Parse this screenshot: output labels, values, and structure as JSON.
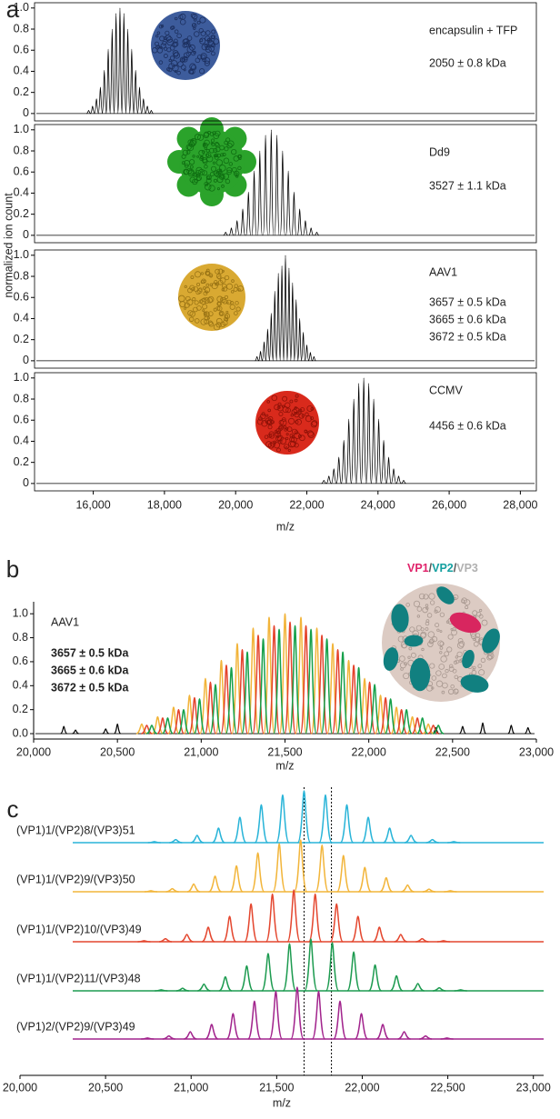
{
  "chart_data": [
    {
      "type": "spectrum",
      "panel_label": "a",
      "ylabel": "normalized ion count",
      "annotations": [
        "encapsulin + TFP",
        "2050 ± 0.8 kDa"
      ],
      "xlim": [
        14350,
        28450
      ],
      "ylim": [
        -0.07,
        1.05
      ],
      "yticks": [
        0,
        0.2,
        0.4,
        0.6,
        0.8,
        {
          "value": 1,
          "label": "1.0"
        }
      ],
      "color": "#000000",
      "x": [
        15870,
        15980,
        16090,
        16200,
        16310,
        16420,
        16530,
        16640,
        16750,
        16860,
        16970,
        17080,
        17190,
        17300,
        17410,
        17520,
        17630
      ],
      "values": [
        0.03,
        0.07,
        0.14,
        0.25,
        0.41,
        0.61,
        0.8,
        0.95,
        1.0,
        0.95,
        0.8,
        0.61,
        0.41,
        0.25,
        0.14,
        0.07,
        0.03
      ]
    },
    {
      "type": "spectrum",
      "annotations": [
        "Dd9",
        "3527 ± 1.1 kDa"
      ],
      "xlim": [
        14350,
        28450
      ],
      "ylim": [
        -0.07,
        1.05
      ],
      "yticks": [
        0,
        0.2,
        0.4,
        0.6,
        0.8,
        {
          "value": 1,
          "label": "1.0"
        }
      ],
      "color": "#000000",
      "x": [
        19720,
        19880,
        20040,
        20200,
        20360,
        20520,
        20680,
        20840,
        21000,
        21160,
        21320,
        21480,
        21640,
        21800,
        21960,
        22120,
        22280
      ],
      "values": [
        0.03,
        0.07,
        0.14,
        0.25,
        0.41,
        0.61,
        0.8,
        0.95,
        1.0,
        0.95,
        0.8,
        0.61,
        0.41,
        0.25,
        0.14,
        0.07,
        0.03
      ]
    },
    {
      "type": "spectrum",
      "annotations": [
        "AAV1",
        "3657 ± 0.5 kDa",
        "3665 ± 0.6 kDa",
        "3672 ± 0.5 kDa"
      ],
      "xlim": [
        14350,
        28450
      ],
      "ylim": [
        -0.07,
        1.05
      ],
      "yticks": [
        0,
        0.2,
        0.4,
        0.6,
        0.8,
        {
          "value": 1,
          "label": "1.0"
        }
      ],
      "color": "#000000",
      "x": [
        20600,
        20700,
        20800,
        20900,
        21000,
        21100,
        21200,
        21300,
        21400,
        21500,
        21600,
        21700,
        21800,
        21900,
        22000,
        22100,
        22200
      ],
      "values": [
        0.04,
        0.09,
        0.18,
        0.3,
        0.45,
        0.66,
        0.83,
        0.9,
        1.0,
        0.88,
        0.74,
        0.58,
        0.4,
        0.27,
        0.15,
        0.08,
        0.04
      ]
    },
    {
      "type": "spectrum",
      "annotations": [
        "CCMV",
        "4456 ± 0.6 kDa"
      ],
      "xlim": [
        14350,
        28450
      ],
      "ylim": [
        -0.07,
        1.05
      ],
      "yticks": [
        0,
        0.2,
        0.4,
        0.6,
        0.8,
        {
          "value": 1,
          "label": "1.0"
        }
      ],
      "color": "#000000",
      "xticks": [
        {
          "value": 16000,
          "label": "16,000"
        },
        {
          "value": 18000,
          "label": "18,000"
        },
        {
          "value": 20000,
          "label": "20,000"
        },
        {
          "value": 22000,
          "label": "22,000"
        },
        {
          "value": 24000,
          "label": "24,000"
        },
        {
          "value": 26000,
          "label": "26,000"
        },
        {
          "value": 28000,
          "label": "28,000"
        }
      ],
      "xlabel": "m/z",
      "x": [
        22480,
        22620,
        22760,
        22900,
        23040,
        23180,
        23320,
        23460,
        23600,
        23740,
        23880,
        24020,
        24160,
        24300,
        24440,
        24580,
        24720
      ],
      "values": [
        0.03,
        0.07,
        0.14,
        0.25,
        0.41,
        0.61,
        0.8,
        0.95,
        1.0,
        0.95,
        0.8,
        0.61,
        0.41,
        0.25,
        0.14,
        0.07,
        0.03
      ]
    },
    {
      "type": "spectrum",
      "panel_label": "b",
      "label": "AAV1",
      "structure_legend": [
        {
          "text": "VP1",
          "color": "#e0226a"
        },
        {
          "text": "/",
          "color": "#555555"
        },
        {
          "text": "VP2",
          "color": "#14a0a0"
        },
        {
          "text": "/",
          "color": "#555555"
        },
        {
          "text": "VP3",
          "color": "#b0b0b0"
        }
      ],
      "xlim": [
        20000,
        23000
      ],
      "ylim": [
        -0.045,
        1.1
      ],
      "xticks": [
        {
          "value": 20000,
          "label": "20,000"
        },
        {
          "value": 20500,
          "label": "20,500"
        },
        {
          "value": 21000,
          "label": "21,000"
        },
        {
          "value": 21500,
          "label": "21,500"
        },
        {
          "value": 22000,
          "label": "22,000"
        },
        {
          "value": 22500,
          "label": "22,500"
        },
        {
          "value": 23000,
          "label": "23,000"
        }
      ],
      "yticks": [
        {
          "value": 0,
          "label": "0.0"
        },
        0.2,
        0.4,
        0.6,
        0.8,
        {
          "value": 1,
          "label": "1.0"
        }
      ],
      "xlabel": "m/z",
      "series": [
        {
          "name": "3657 ± 0.5 kDa",
          "color": "#f2b43a",
          "x": [
            20645,
            20740,
            20835,
            20930,
            21025,
            21120,
            21215,
            21310,
            21405,
            21500,
            21595,
            21690,
            21785,
            21880,
            21975,
            22070,
            22165,
            22260,
            22355
          ],
          "values": [
            0.08,
            0.14,
            0.22,
            0.32,
            0.46,
            0.61,
            0.75,
            0.88,
            0.97,
            1.0,
            0.97,
            0.88,
            0.75,
            0.61,
            0.46,
            0.32,
            0.22,
            0.14,
            0.08
          ]
        },
        {
          "name": "3665 ± 0.6 kDa",
          "color": "#e4432c",
          "x": [
            20675,
            20770,
            20865,
            20960,
            21055,
            21150,
            21245,
            21340,
            21435,
            21530,
            21625,
            21720,
            21815,
            21910,
            22005,
            22100,
            22195,
            22290,
            22385
          ],
          "values": [
            0.07,
            0.13,
            0.2,
            0.3,
            0.43,
            0.57,
            0.7,
            0.82,
            0.9,
            0.93,
            0.9,
            0.82,
            0.7,
            0.57,
            0.43,
            0.3,
            0.2,
            0.13,
            0.07
          ]
        },
        {
          "name": "3672 ± 0.5 kDa",
          "color": "#16a04a",
          "x": [
            20705,
            20800,
            20895,
            20990,
            21085,
            21180,
            21275,
            21370,
            21465,
            21560,
            21655,
            21750,
            21845,
            21940,
            22035,
            22130,
            22225,
            22320,
            22415
          ],
          "values": [
            0.07,
            0.13,
            0.2,
            0.29,
            0.41,
            0.55,
            0.68,
            0.79,
            0.87,
            0.9,
            0.87,
            0.79,
            0.68,
            0.55,
            0.41,
            0.29,
            0.2,
            0.13,
            0.07
          ]
        }
      ],
      "baseline": {
        "color": "#000000",
        "x": [
          20180,
          20250,
          20430,
          20500,
          22400,
          22560,
          22680,
          22850,
          22950
        ],
        "values": [
          0.06,
          0.03,
          0.04,
          0.08,
          0.05,
          0.06,
          0.09,
          0.07,
          0.05
        ]
      }
    },
    {
      "type": "waterfall",
      "panel_label": "c",
      "xlim": [
        20000,
        23060
      ],
      "xticks": [
        {
          "value": 20000,
          "label": "20,000"
        },
        {
          "value": 20500,
          "label": "20,500"
        },
        {
          "value": 21000,
          "label": "21,000"
        },
        {
          "value": 21500,
          "label": "21,500"
        },
        {
          "value": 22000,
          "label": "22,000"
        },
        {
          "value": 22500,
          "label": "22,500"
        },
        {
          "value": 23000,
          "label": "23,000"
        }
      ],
      "xlabel": "m/z",
      "markers": [
        21660,
        21820
      ],
      "series": [
        {
          "name": "(VP1)1/(VP2)8/(VP3)51",
          "color": "#29b4d8",
          "x": [
            20785,
            20910,
            21035,
            21160,
            21285,
            21410,
            21535,
            21660,
            21785,
            21910,
            22035,
            22160,
            22285,
            22410,
            22535
          ],
          "values": [
            0.02,
            0.06,
            0.14,
            0.28,
            0.49,
            0.73,
            0.92,
            1.0,
            0.92,
            0.73,
            0.49,
            0.28,
            0.14,
            0.06,
            0.02
          ]
        },
        {
          "name": "(VP1)1/(VP2)9/(VP3)50",
          "color": "#f2b53a",
          "x": [
            20765,
            20890,
            21015,
            21140,
            21265,
            21390,
            21515,
            21640,
            21765,
            21890,
            22015,
            22140,
            22265,
            22390,
            22515
          ],
          "values": [
            0.02,
            0.06,
            0.15,
            0.3,
            0.5,
            0.75,
            0.93,
            1.0,
            0.9,
            0.7,
            0.47,
            0.27,
            0.13,
            0.05,
            0.02
          ]
        },
        {
          "name": "(VP1)1/(VP2)10/(VP3)49",
          "color": "#e4472f",
          "x": [
            20725,
            20850,
            20975,
            21100,
            21225,
            21350,
            21475,
            21600,
            21725,
            21850,
            21975,
            22100,
            22225,
            22350,
            22475
          ],
          "values": [
            0.02,
            0.06,
            0.14,
            0.28,
            0.49,
            0.73,
            0.92,
            1.0,
            0.92,
            0.73,
            0.49,
            0.28,
            0.14,
            0.06,
            0.02
          ]
        },
        {
          "name": "(VP1)1/(VP2)11/(VP3)48",
          "color": "#1d9b50",
          "x": [
            20825,
            20950,
            21075,
            21200,
            21325,
            21450,
            21575,
            21700,
            21825,
            21950,
            22075,
            22200,
            22325,
            22450,
            22575
          ],
          "values": [
            0.02,
            0.05,
            0.13,
            0.27,
            0.48,
            0.72,
            0.91,
            1.0,
            0.93,
            0.75,
            0.5,
            0.29,
            0.14,
            0.06,
            0.02
          ]
        },
        {
          "name": "(VP1)2/(VP2)9/(VP3)49",
          "color": "#a2248d",
          "x": [
            20745,
            20870,
            20995,
            21120,
            21245,
            21370,
            21495,
            21620,
            21745,
            21870,
            21995,
            22120,
            22245,
            22370,
            22495
          ],
          "values": [
            0.02,
            0.06,
            0.14,
            0.28,
            0.49,
            0.73,
            0.92,
            1.0,
            0.92,
            0.73,
            0.49,
            0.28,
            0.14,
            0.06,
            0.02
          ]
        }
      ]
    }
  ]
}
